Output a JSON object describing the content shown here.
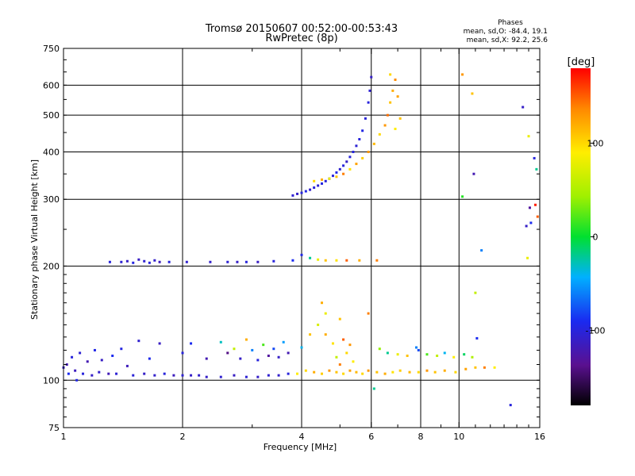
{
  "chart_data": {
    "type": "scatter",
    "title": "Tromsø 20150607 00:52:00-00:53:43",
    "subtitle": "RwPretec (8p)",
    "xlabel": "Frequency [MHz]",
    "ylabel": "Stationary phase Virtual Height [km]",
    "x_scale": "log",
    "y_scale": "log",
    "xlim": [
      1,
      16
    ],
    "ylim": [
      75,
      750
    ],
    "x_ticks": [
      1,
      2,
      4,
      6,
      8,
      10,
      16
    ],
    "y_ticks": [
      75,
      100,
      200,
      300,
      400,
      500,
      600,
      750
    ],
    "grid": true,
    "stats": {
      "heading": "Phases",
      "o_line": "mean, sd,O: -84.4, 19.1",
      "x_line": "mean, sd,X:  92.2, 25.6"
    },
    "colorbar": {
      "label": "[deg]",
      "range": [
        -180,
        180
      ],
      "ticks": [
        100,
        0,
        -100
      ],
      "placement": "right"
    },
    "series": [
      {
        "points": [
          [
            1.0,
            108,
            -110
          ],
          [
            1.02,
            110,
            -120
          ],
          [
            1.03,
            104,
            -90
          ],
          [
            1.05,
            115,
            -100
          ],
          [
            1.07,
            106,
            -115
          ],
          [
            1.08,
            100,
            -95
          ],
          [
            1.1,
            118,
            -105
          ],
          [
            1.12,
            104,
            -100
          ],
          [
            1.15,
            112,
            -120
          ],
          [
            1.18,
            103,
            -110
          ],
          [
            1.2,
            120,
            -95
          ],
          [
            1.23,
            105,
            -108
          ],
          [
            1.25,
            113,
            -112
          ],
          [
            1.3,
            104,
            -118
          ],
          [
            1.33,
            116,
            -90
          ],
          [
            1.36,
            104,
            -104
          ],
          [
            1.4,
            121,
            -98
          ],
          [
            1.45,
            109,
            -116
          ],
          [
            1.5,
            103,
            -102
          ],
          [
            1.55,
            127,
            -106
          ],
          [
            1.6,
            104,
            -110
          ],
          [
            1.65,
            114,
            -92
          ],
          [
            1.7,
            103,
            -108
          ],
          [
            1.75,
            125,
            -112
          ],
          [
            1.8,
            104,
            -100
          ],
          [
            1.9,
            103,
            -115
          ],
          [
            2.0,
            103,
            -105
          ],
          [
            2.1,
            103,
            -110
          ],
          [
            2.2,
            103,
            -108
          ],
          [
            2.3,
            102,
            -110
          ],
          [
            2.5,
            102,
            -106
          ],
          [
            2.7,
            103,
            -112
          ],
          [
            2.9,
            102,
            -104
          ],
          [
            3.1,
            102,
            -110
          ],
          [
            3.3,
            103,
            -106
          ],
          [
            3.5,
            103,
            -108
          ],
          [
            3.7,
            104,
            -100
          ]
        ]
      },
      {
        "points": [
          [
            1.31,
            205,
            -100
          ],
          [
            1.4,
            205,
            -104
          ],
          [
            1.45,
            206,
            -110
          ],
          [
            1.5,
            204,
            -98
          ],
          [
            1.55,
            208,
            -112
          ],
          [
            1.6,
            206,
            -105
          ],
          [
            1.65,
            204,
            -100
          ],
          [
            1.7,
            207,
            -108
          ],
          [
            1.75,
            205,
            -114
          ],
          [
            1.85,
            205,
            -100
          ],
          [
            2.05,
            205,
            -106
          ],
          [
            2.35,
            205,
            -108
          ],
          [
            2.6,
            205,
            -104
          ],
          [
            2.75,
            205,
            -110
          ],
          [
            2.9,
            205,
            -100
          ],
          [
            3.1,
            205,
            -112
          ],
          [
            3.4,
            206,
            -100
          ],
          [
            3.8,
            207,
            -90
          ],
          [
            4.0,
            214,
            -95
          ],
          [
            4.2,
            210,
            -20
          ],
          [
            4.4,
            208,
            80
          ],
          [
            4.6,
            207,
            110
          ],
          [
            4.9,
            207,
            95
          ],
          [
            5.2,
            207,
            150
          ],
          [
            5.6,
            207,
            120
          ],
          [
            6.2,
            207,
            140
          ]
        ]
      },
      {
        "points": [
          [
            3.8,
            307,
            -105
          ],
          [
            3.9,
            310,
            -110
          ],
          [
            4.0,
            312,
            -100
          ],
          [
            4.1,
            315,
            -95
          ],
          [
            4.2,
            318,
            -108
          ],
          [
            4.3,
            322,
            -100
          ],
          [
            4.4,
            326,
            -105
          ],
          [
            4.5,
            330,
            -98
          ],
          [
            4.6,
            335,
            -102
          ],
          [
            4.7,
            340,
            -110
          ],
          [
            4.8,
            346,
            -100
          ],
          [
            4.9,
            353,
            -95
          ],
          [
            5.0,
            360,
            -105
          ],
          [
            5.1,
            368,
            -100
          ],
          [
            5.2,
            377,
            -110
          ],
          [
            5.3,
            388,
            -100
          ],
          [
            5.4,
            400,
            -98
          ],
          [
            5.5,
            415,
            -104
          ],
          [
            5.6,
            432,
            -100
          ],
          [
            5.7,
            455,
            -96
          ],
          [
            5.8,
            490,
            -102
          ],
          [
            5.9,
            540,
            -100
          ],
          [
            5.95,
            580,
            -105
          ],
          [
            6.0,
            630,
            -110
          ]
        ]
      },
      {
        "points": [
          [
            4.3,
            335,
            100
          ],
          [
            4.5,
            338,
            120
          ],
          [
            4.7,
            340,
            80
          ],
          [
            4.9,
            344,
            110
          ],
          [
            5.1,
            350,
            140
          ],
          [
            5.3,
            360,
            95
          ],
          [
            5.5,
            372,
            125
          ],
          [
            5.7,
            385,
            105
          ],
          [
            5.9,
            400,
            130
          ],
          [
            6.1,
            420,
            115
          ],
          [
            6.3,
            445,
            100
          ],
          [
            6.5,
            470,
            130
          ],
          [
            6.6,
            500,
            145
          ],
          [
            6.7,
            540,
            110
          ],
          [
            6.8,
            580,
            120
          ],
          [
            6.9,
            620,
            135
          ],
          [
            6.7,
            640,
            100
          ],
          [
            7.0,
            560,
            125
          ],
          [
            6.9,
            460,
            90
          ],
          [
            7.1,
            490,
            110
          ]
        ]
      },
      {
        "points": [
          [
            3.9,
            104,
            90
          ],
          [
            4.1,
            106,
            100
          ],
          [
            4.3,
            105,
            120
          ],
          [
            4.5,
            104,
            105
          ],
          [
            4.7,
            106,
            130
          ],
          [
            4.9,
            105,
            110
          ],
          [
            5.1,
            104,
            100
          ],
          [
            5.3,
            106,
            125
          ],
          [
            5.5,
            105,
            115
          ],
          [
            5.7,
            104,
            100
          ],
          [
            5.9,
            106,
            130
          ],
          [
            6.2,
            105,
            110
          ],
          [
            6.5,
            104,
            120
          ],
          [
            6.8,
            105,
            95
          ],
          [
            7.1,
            106,
            105
          ],
          [
            7.5,
            105,
            115
          ],
          [
            7.9,
            105,
            100
          ],
          [
            8.3,
            106,
            130
          ],
          [
            8.7,
            105,
            110
          ],
          [
            9.2,
            106,
            120
          ],
          [
            9.8,
            105,
            100
          ],
          [
            10.4,
            107,
            125
          ],
          [
            11.0,
            108,
            110
          ],
          [
            11.6,
            108,
            140
          ],
          [
            12.3,
            108,
            90
          ]
        ]
      },
      {
        "points": [
          [
            4.4,
            140,
            70
          ],
          [
            4.6,
            132,
            120
          ],
          [
            4.8,
            125,
            95
          ],
          [
            5.0,
            145,
            110
          ],
          [
            5.1,
            128,
            150
          ],
          [
            5.2,
            118,
            100
          ],
          [
            4.9,
            115,
            60
          ],
          [
            4.6,
            150,
            80
          ],
          [
            5.3,
            124,
            130
          ],
          [
            4.2,
            132,
            110
          ],
          [
            4.0,
            122,
            -40
          ],
          [
            4.5,
            160,
            120
          ],
          [
            5.0,
            110,
            140
          ],
          [
            5.4,
            112,
            90
          ]
        ]
      },
      {
        "points": [
          [
            2.0,
            118,
            -100
          ],
          [
            2.1,
            125,
            -90
          ],
          [
            2.3,
            114,
            -120
          ],
          [
            2.5,
            126,
            -30
          ],
          [
            2.6,
            118,
            -140
          ],
          [
            2.7,
            121,
            60
          ],
          [
            2.8,
            114,
            -110
          ],
          [
            2.9,
            128,
            120
          ],
          [
            3.0,
            120,
            -60
          ],
          [
            3.1,
            113,
            -100
          ],
          [
            3.2,
            124,
            20
          ],
          [
            3.3,
            116,
            -130
          ],
          [
            3.4,
            121,
            -80
          ],
          [
            3.5,
            115,
            -110
          ],
          [
            3.6,
            126,
            -50
          ],
          [
            3.7,
            118,
            -120
          ]
        ]
      },
      {
        "points": [
          [
            6.3,
            121,
            40
          ],
          [
            6.6,
            118,
            -20
          ],
          [
            7.0,
            117,
            80
          ],
          [
            7.4,
            116,
            110
          ],
          [
            7.8,
            122,
            -60
          ],
          [
            8.3,
            117,
            20
          ],
          [
            8.8,
            116,
            60
          ],
          [
            9.2,
            118,
            -40
          ],
          [
            9.7,
            115,
            90
          ],
          [
            10.3,
            117,
            -10
          ],
          [
            10.8,
            115,
            50
          ],
          [
            11.1,
            129,
            -90
          ]
        ]
      },
      {
        "points": [
          [
            10.2,
            640,
            130
          ],
          [
            10.8,
            570,
            110
          ],
          [
            10.9,
            350,
            -120
          ],
          [
            14.5,
            525,
            -110
          ],
          [
            15.0,
            440,
            80
          ],
          [
            15.5,
            385,
            -100
          ],
          [
            15.7,
            360,
            -20
          ],
          [
            15.1,
            285,
            -130
          ],
          [
            15.6,
            290,
            170
          ],
          [
            15.8,
            270,
            150
          ],
          [
            14.8,
            255,
            -110
          ],
          [
            15.2,
            260,
            -90
          ],
          [
            11.4,
            220,
            -60
          ],
          [
            14.9,
            210,
            80
          ],
          [
            10.2,
            305,
            10
          ],
          [
            13.5,
            86,
            -100
          ],
          [
            7.9,
            120,
            -80
          ],
          [
            6.1,
            95,
            -20
          ],
          [
            11.0,
            170,
            60
          ],
          [
            5.9,
            150,
            140
          ]
        ]
      }
    ]
  }
}
